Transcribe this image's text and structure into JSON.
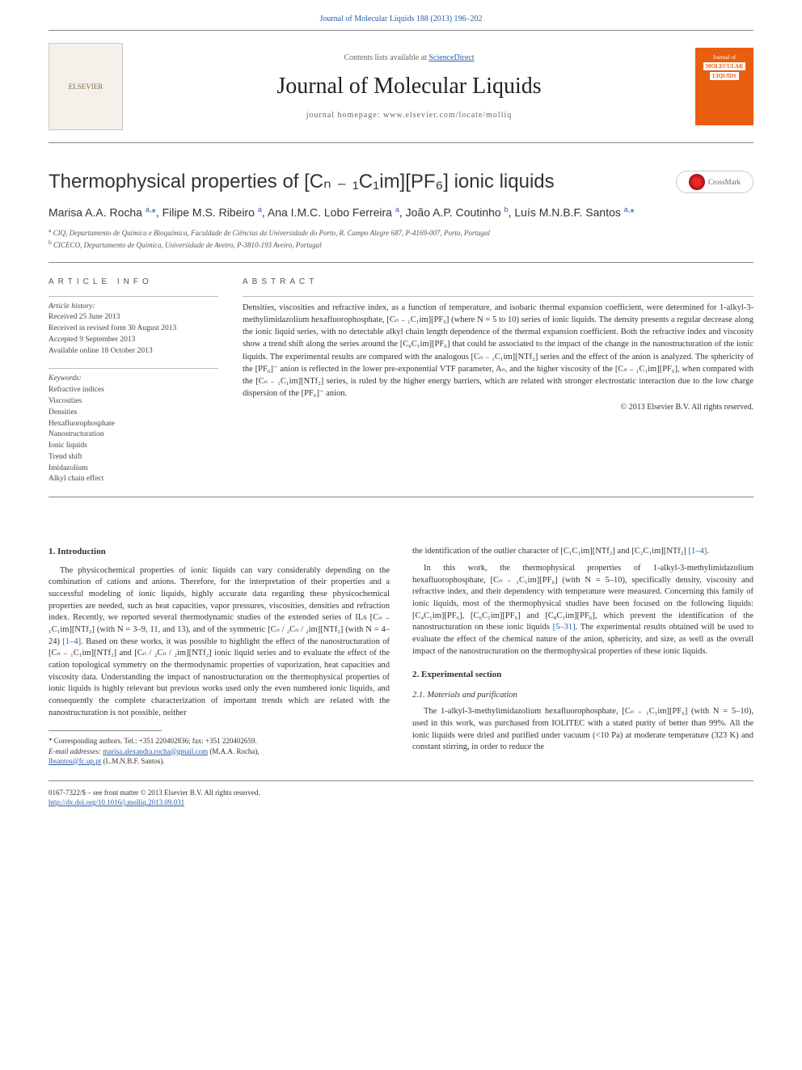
{
  "journal_link": "Journal of Molecular Liquids 188 (2013) 196–202",
  "header": {
    "contents_prefix": "Contents lists available at ",
    "contents_link": "ScienceDirect",
    "journal_name": "Journal of Molecular Liquids",
    "homepage_prefix": "journal homepage: ",
    "homepage_url": "www.elsevier.com/locate/molliq",
    "publisher_logo_alt": "ELSEVIER",
    "cover_label1": "Journal of",
    "cover_label2": "MOLECULAR",
    "cover_label3": "LIQUIDS"
  },
  "title": "Thermophysical properties of [Cₙ ₋ ₁C₁im][PF₆] ionic liquids",
  "crossmark_label": "CrossMark",
  "authors_html": "Marisa A.A. Rocha <sup>a,</sup><span class='star'>*</span>, Filipe M.S. Ribeiro <sup>a</sup>, Ana I.M.C. Lobo Ferreira <sup>a</sup>, João A.P. Coutinho <sup>b</sup>, Luís M.N.B.F. Santos <sup>a,</sup><span class='star'>*</span>",
  "affiliations": {
    "a": "CIQ, Departamento de Química e Bioquímica, Faculdade de Ciências da Universidade do Porto, R. Campo Alegre 687, P-4169-007, Porto, Portugal",
    "b": "CICECO, Departamento de Química, Universidade de Aveiro, P-3810-193 Aveiro, Portugal"
  },
  "info": {
    "heading": "ARTICLE INFO",
    "history_label": "Article history:",
    "received": "Received 25 June 2013",
    "revised": "Received in revised form 30 August 2013",
    "accepted": "Accepted 9 September 2013",
    "online": "Available online 18 October 2013",
    "keywords_label": "Keywords:",
    "keywords": [
      "Refractive indices",
      "Viscosities",
      "Densities",
      "Hexafluorophosphate",
      "Nanostructuration",
      "Ionic liquids",
      "Trend shift",
      "Imidazolium",
      "Alkyl chain effect"
    ]
  },
  "abstract": {
    "heading": "ABSTRACT",
    "text": "Densities, viscosities and refractive index, as a function of temperature, and isobaric thermal expansion coefficient, were determined for 1-alkyl-3-methylimidazolium hexafluorophosphate, [Cₙ ₋ ₁C₁im][PF₆] (where N = 5 to 10) series of ionic liquids. The density presents a regular decrease along the ionic liquid series, with no detectable alkyl chain length dependence of the thermal expansion coefficient. Both the refractive index and viscosity show a trend shift along the series around the [C₆C₁im][PF₆] that could be associated to the impact of the change in the nanostructuration of the ionic liquids. The experimental results are compared with the analogous [Cₙ ₋ ₁C₁im][NTf₂] series and the effect of the anion is analyzed. The sphericity of the [PF₆]⁻ anion is reflected in the lower pre-exponential VTF parameter, Aₙ, and the higher viscosity of the [Cₙ ₋ ₁C₁im][PF₆], when compared with the [Cₙ ₋ ₁C₁im][NTf₂] series, is ruled by the higher energy barriers, which are related with stronger electrostatic interaction due to the low charge dispersion of the [PF₆]⁻ anion.",
    "copyright": "© 2013 Elsevier B.V. All rights reserved."
  },
  "body": {
    "left": {
      "sec1": "1. Introduction",
      "p1": "The physicochemical properties of ionic liquids can vary considerably depending on the combination of cations and anions. Therefore, for the interpretation of their properties and a successful modeling of ionic liquids, highly accurate data regarding these physicochemical properties are needed, such as heat capacities, vapor pressures, viscosities, densities and refraction index. Recently, we reported several thermodynamic studies of the extended series of ILs [Cₙ ₋ ₁C₁im][NTf₂] (with N = 3–9, 11, and 13), and of the symmetric [Cₙ / ₂Cₙ / ₂im][NTf₂] (with N = 4–24) ",
      "ref1": "[1–4]",
      "p1b": ". Based on these works, it was possible to highlight the effect of the nanostructuration of [Cₙ ₋ ₁C₁im][NTf₂] and [Cₙ / ₂Cₙ / ₂im][NTf₂] ionic liquid series and to evaluate the effect of the cation topological symmetry on the thermodynamic properties of vaporization, heat capacities and viscosity data. Understanding the impact of nanostructuration on the thermophysical properties of ionic liquids is highly relevant but previous works used only the even numbered ionic liquids, and consequently the complete characterization of important trends which are related with the nanostructuration is not possible, neither",
      "footnote_marker": "* Corresponding authors. Tel.: +351 220402836; fax: +351 220402659.",
      "footnote_email_label": "E-mail addresses: ",
      "footnote_email1": "marisa.alexandra.rocha@gmail.com",
      "footnote_email1_name": " (M.A.A. Rocha),",
      "footnote_email2": "lbsantos@fc.up.pt",
      "footnote_email2_name": " (L.M.N.B.F. Santos)."
    },
    "right": {
      "p1": "the identification of the outlier character of [C₁C₁im][NTf₂] and [C₂C₁im][NTf₂] ",
      "ref1": "[1–4]",
      "p1b": ".",
      "p2": "In this work, the thermophysical properties of 1-alkyl-3-methylimidazolium hexafluorophosphate, [Cₙ ₋ ₁C₁im][PF₆] (with N = 5–10), specifically density, viscosity and refractive index, and their dependency with temperature were measured. Concerning this family of ionic liquids, most of the thermophysical studies have been focused on the following liquids: [C₄C₁im][PF₆], [C₆C₁im][PF₆] and [C₈C₁im][PF₆], which prevent the identification of the nanostructuration on these ionic liquids ",
      "ref2": "[5–31]",
      "p2b": ". The experimental results obtained will be used to evaluate the effect of the chemical nature of the anion, sphericity, and size, as well as the overall impact of the nanostructuration on the thermophysical properties of these ionic liquids.",
      "sec2": "2. Experimental section",
      "sub21": "2.1. Materials and purification",
      "p3": "The 1-alkyl-3-methylimidazolium hexafluorophosphate, [Cₙ ₋ ₁C₁im][PF₆] (with N = 5–10), used in this work, was purchased from IOLITEC with a stated purity of better than 99%. All the ionic liquids were dried and purified under vacuum (<10 Pa) at moderate temperature (323 K) and constant stirring, in order to reduce the"
    }
  },
  "bottom": {
    "issn_line": "0167-7322/$ – see front matter © 2013 Elsevier B.V. All rights reserved.",
    "doi_url": "http://dx.doi.org/10.1016/j.molliq.2013.09.031"
  },
  "colors": {
    "link": "#2a5da8",
    "orange": "#e95d0f",
    "text": "#333333",
    "rule": "#888888"
  }
}
